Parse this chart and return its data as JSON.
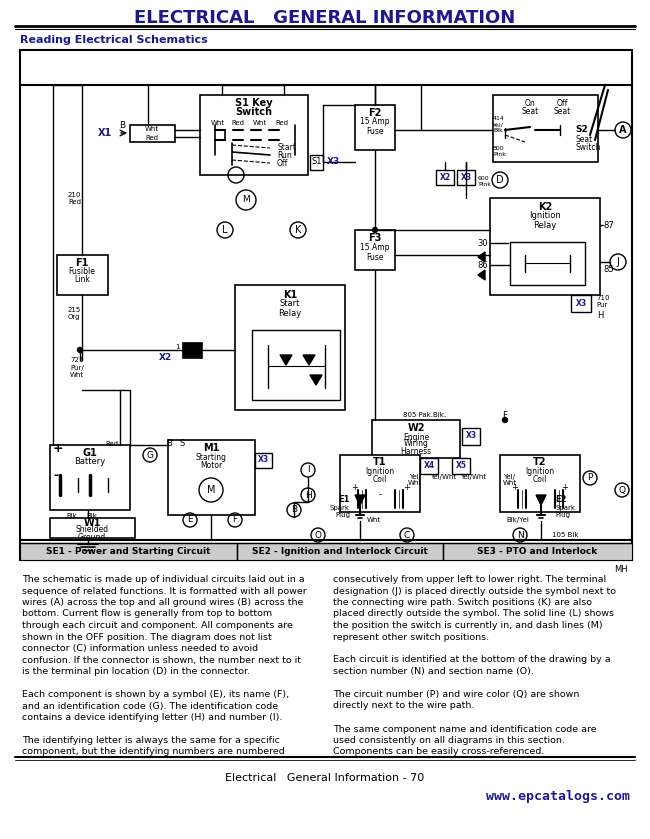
{
  "title": "ELECTRICAL   GENERAL INFORMATION",
  "subtitle": "Reading Electrical Schematics",
  "page_footer": "Electrical   General Information - 70",
  "watermark": "www.epcatalogs.com",
  "bg_color": "#ffffff",
  "title_color": "#1a1a8c",
  "section_labels": [
    "SE1 - Power and Starting Circuit",
    "SE2 - Ignition and Interlock Circuit",
    "SE3 - PTO and Interlock"
  ],
  "body_text_left": [
    "The schematic is made up of individual circuits laid out in a",
    "sequence of related functions. It is formatted with all power",
    "wires (A) across the top and all ground wires (B) across the",
    "bottom. Current flow is generally from top to bottom",
    "through each circuit and component. All components are",
    "shown in the OFF position. The diagram does not list",
    "connector (C) information unless needed to avoid",
    "confusion. If the connector is shown, the number next to it",
    "is the terminal pin location (D) in the connector.",
    "",
    "Each component is shown by a symbol (E), its name (F),",
    "and an identification code (G). The identification code",
    "contains a device identifying letter (H) and number (I).",
    "",
    "The identifying letter is always the same for a specific",
    "component, but the identifying numbers are numbered"
  ],
  "body_text_right": [
    "consecutively from upper left to lower right. The terminal",
    "designation (J) is placed directly outside the symbol next to",
    "the connecting wire path. Switch positions (K) are also",
    "placed directly outside the symbol. The solid line (L) shows",
    "the position the switch is currently in, and dash lines (M)",
    "represent other switch positions.",
    "",
    "Each circuit is identified at the bottom of the drawing by a",
    "section number (N) and section name (O).",
    "",
    "The circuit number (P) and wire color (Q) are shown",
    "directly next to the wire path.",
    "",
    "The same component name and identification code are",
    "used consistently on all diagrams in this section.",
    "Components can be easily cross-referenced."
  ]
}
